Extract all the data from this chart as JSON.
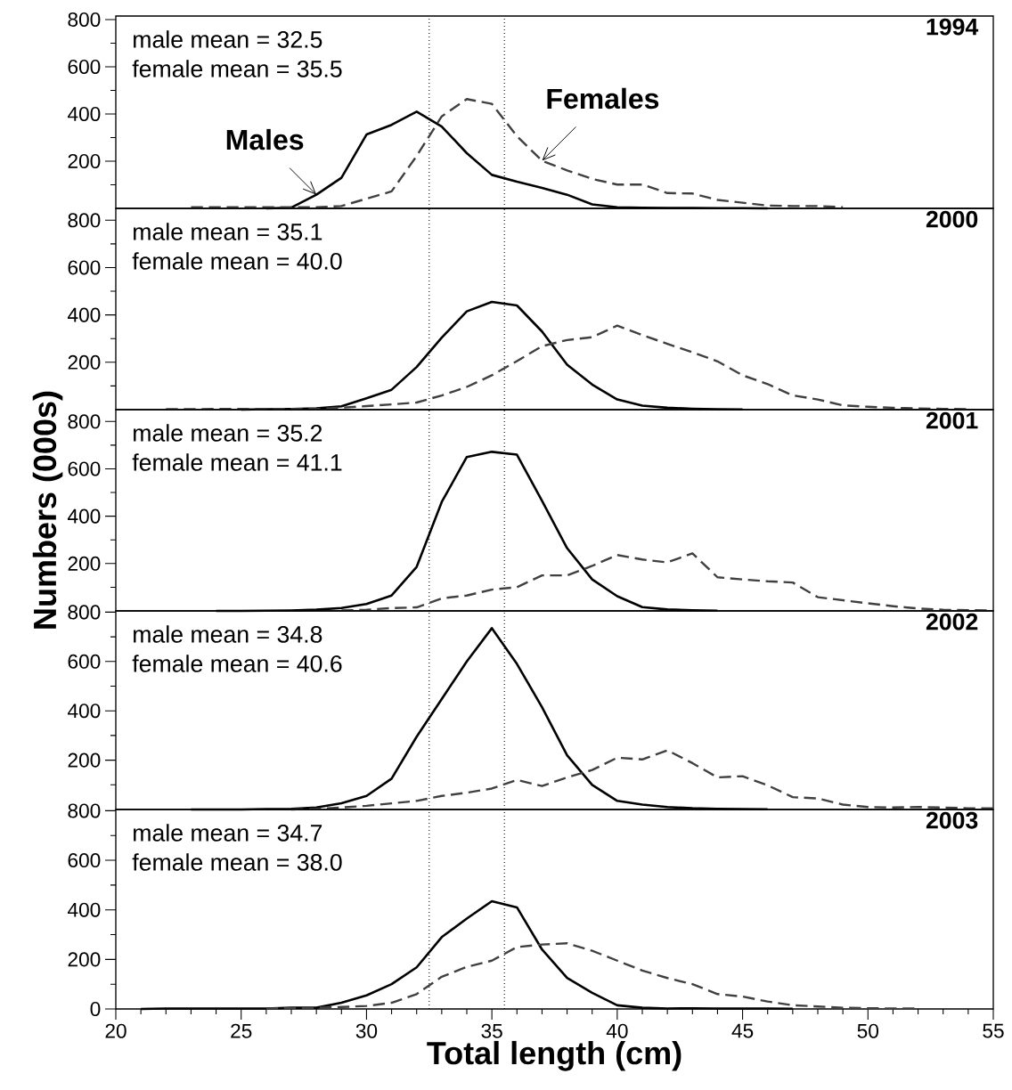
{
  "chart_data": [
    {
      "type": "line",
      "title": "1994",
      "annotations": [
        "male mean = 32.5",
        "female mean = 35.5"
      ],
      "xlim": [
        20,
        55
      ],
      "ylim": [
        0,
        815
      ],
      "tick_labels": "y",
      "yticks": [
        200,
        400,
        600,
        800,
        {
          "value": 100,
          "label": null
        },
        {
          "value": 300,
          "label": null
        },
        {
          "value": 500,
          "label": null
        },
        {
          "value": 700,
          "label": null
        }
      ],
      "ref_lines": [
        {
          "axis": "x",
          "value": 32.5,
          "color": "#000000",
          "line_style": "dotted"
        },
        {
          "axis": "x",
          "value": 35.5,
          "color": "#000000",
          "line_style": "dotted"
        }
      ],
      "series": [
        {
          "name": "Males",
          "color": "#000000",
          "line_style": "solid",
          "x": [
            26,
            27,
            28,
            29,
            30,
            31,
            32,
            33,
            34,
            35,
            36,
            37,
            38,
            39,
            40,
            41,
            42,
            43,
            44,
            45,
            46
          ],
          "values": [
            0,
            3,
            58,
            130,
            313,
            354,
            410,
            347,
            234,
            142,
            113,
            87,
            58,
            17,
            5,
            3,
            2,
            2,
            1,
            1,
            0
          ]
        },
        {
          "name": "Females",
          "color": "#404040",
          "line_style": "dashed",
          "x": [
            23,
            24,
            25,
            26,
            27,
            28,
            29,
            30,
            31,
            32,
            33,
            34,
            35,
            36,
            37,
            38,
            39,
            40,
            41,
            42,
            43,
            44,
            45,
            46,
            47,
            48,
            49
          ],
          "values": [
            5,
            5,
            5,
            5,
            5,
            5,
            10,
            41,
            72,
            222,
            390,
            463,
            443,
            306,
            202,
            161,
            125,
            101,
            101,
            65,
            63,
            36,
            24,
            12,
            10,
            10,
            5
          ]
        }
      ]
    },
    {
      "type": "line",
      "title": "2000",
      "annotations": [
        "male mean = 35.1",
        "female mean = 40.0"
      ],
      "xlim": [
        20,
        55
      ],
      "ylim": [
        0,
        850
      ],
      "tick_labels": "y",
      "yticks": [
        200,
        400,
        600,
        800,
        {
          "value": 100,
          "label": null
        },
        {
          "value": 300,
          "label": null
        },
        {
          "value": 500,
          "label": null
        },
        {
          "value": 700,
          "label": null
        }
      ],
      "ref_lines": [
        {
          "axis": "x",
          "value": 32.5,
          "color": "#000000",
          "line_style": "dotted"
        },
        {
          "axis": "x",
          "value": 35.5,
          "color": "#000000",
          "line_style": "dotted"
        }
      ],
      "series": [
        {
          "color": "#000000",
          "line_style": "solid",
          "x": [
            25,
            26,
            27,
            28,
            29,
            30,
            31,
            32,
            33,
            34,
            35,
            36,
            37,
            38,
            39,
            40,
            41,
            42,
            43,
            44,
            45
          ],
          "values": [
            0,
            2,
            3,
            5,
            14,
            48,
            84,
            180,
            304,
            415,
            455,
            440,
            330,
            190,
            106,
            43,
            17,
            8,
            4,
            2,
            1
          ]
        },
        {
          "color": "#404040",
          "line_style": "dashed",
          "x": [
            22,
            23,
            24,
            25,
            26,
            27,
            28,
            29,
            30,
            31,
            32,
            33,
            34,
            35,
            36,
            37,
            38,
            39,
            40,
            41,
            42,
            43,
            44,
            45,
            46,
            47,
            48,
            49,
            50,
            51,
            52,
            53,
            54
          ],
          "values": [
            2,
            2,
            3,
            3,
            3,
            3,
            3,
            8,
            15,
            22,
            30,
            60,
            96,
            145,
            205,
            268,
            294,
            306,
            355,
            315,
            278,
            242,
            204,
            145,
            108,
            60,
            43,
            18,
            12,
            8,
            5,
            3,
            2
          ]
        }
      ]
    },
    {
      "type": "line",
      "title": "2001",
      "ylabel": "Numbers (000s)",
      "annotations": [
        "male mean = 35.2",
        "female mean = 41.1"
      ],
      "xlim": [
        20,
        55
      ],
      "ylim": [
        0,
        850
      ],
      "tick_labels": "y",
      "yticks": [
        200,
        400,
        600,
        800,
        {
          "value": 100,
          "label": null
        },
        {
          "value": 300,
          "label": null
        },
        {
          "value": 500,
          "label": null
        },
        {
          "value": 700,
          "label": null
        }
      ],
      "ref_lines": [
        {
          "axis": "x",
          "value": 32.5,
          "color": "#000000",
          "line_style": "dotted"
        },
        {
          "axis": "x",
          "value": 35.5,
          "color": "#000000",
          "line_style": "dotted"
        }
      ],
      "series": [
        {
          "color": "#000000",
          "line_style": "solid",
          "x": [
            24,
            25,
            26,
            27,
            28,
            29,
            30,
            31,
            32,
            33,
            34,
            35,
            36,
            37,
            38,
            39,
            40,
            41,
            42,
            43,
            44
          ],
          "values": [
            0,
            0,
            1,
            2,
            5,
            12,
            29,
            65,
            186,
            460,
            650,
            672,
            660,
            465,
            265,
            133,
            62,
            16,
            6,
            3,
            1
          ]
        },
        {
          "color": "#404040",
          "line_style": "dashed",
          "x": [
            29,
            30,
            31,
            32,
            33,
            34,
            35,
            36,
            37,
            38,
            39,
            40,
            41,
            42,
            43,
            44,
            45,
            46,
            47,
            48,
            49,
            50,
            51,
            52,
            53,
            54,
            55
          ],
          "values": [
            2,
            5,
            12,
            15,
            53,
            65,
            90,
            100,
            150,
            150,
            190,
            236,
            217,
            205,
            243,
            142,
            133,
            125,
            120,
            58,
            45,
            32,
            20,
            10,
            5,
            3,
            2
          ]
        }
      ]
    },
    {
      "type": "line",
      "title": "2002",
      "annotations": [
        "male mean = 34.8",
        "female mean = 40.6"
      ],
      "xlim": [
        20,
        55
      ],
      "ylim": [
        0,
        805
      ],
      "tick_labels": "y",
      "yticks": [
        200,
        400,
        600,
        800,
        {
          "value": 100,
          "label": null
        },
        {
          "value": 300,
          "label": null
        },
        {
          "value": 500,
          "label": null
        },
        {
          "value": 700,
          "label": null
        }
      ],
      "ref_lines": [
        {
          "axis": "x",
          "value": 32.5,
          "color": "#000000",
          "line_style": "dotted"
        },
        {
          "axis": "x",
          "value": 35.5,
          "color": "#000000",
          "line_style": "dotted"
        }
      ],
      "series": [
        {
          "color": "#000000",
          "line_style": "solid",
          "x": [
            23,
            24,
            25,
            26,
            27,
            28,
            29,
            30,
            31,
            32,
            33,
            34,
            35,
            36,
            37,
            38,
            39,
            40,
            41,
            42,
            43,
            44,
            45,
            46
          ],
          "values": [
            0,
            0,
            0,
            2,
            3,
            8,
            25,
            55,
            125,
            295,
            448,
            600,
            735,
            590,
            415,
            220,
            100,
            35,
            20,
            10,
            5,
            3,
            2,
            1
          ]
        },
        {
          "color": "#404040",
          "line_style": "dashed",
          "x": [
            27,
            28,
            29,
            30,
            31,
            32,
            33,
            34,
            35,
            36,
            37,
            38,
            39,
            40,
            41,
            42,
            43,
            44,
            45,
            46,
            47,
            48,
            49,
            50,
            51,
            52,
            53,
            54,
            55
          ],
          "values": [
            0,
            3,
            8,
            15,
            25,
            35,
            55,
            68,
            85,
            120,
            95,
            130,
            160,
            210,
            203,
            240,
            188,
            130,
            135,
            98,
            50,
            45,
            20,
            10,
            8,
            10,
            8,
            5,
            5
          ]
        }
      ]
    },
    {
      "type": "line",
      "title": "2003",
      "xlabel": "Total length (cm)",
      "annotations": [
        "male mean = 34.7",
        "female mean = 38.0"
      ],
      "xlim": [
        20,
        55
      ],
      "ylim": [
        0,
        805
      ],
      "xticks": [
        20,
        25,
        30,
        35,
        40,
        45,
        50,
        55,
        {
          "value": 21,
          "label": null
        },
        {
          "value": 22,
          "label": null
        },
        {
          "value": 23,
          "label": null
        },
        {
          "value": 24,
          "label": null
        },
        {
          "value": 26,
          "label": null
        },
        {
          "value": 27,
          "label": null
        },
        {
          "value": 28,
          "label": null
        },
        {
          "value": 29,
          "label": null
        },
        {
          "value": 31,
          "label": null
        },
        {
          "value": 32,
          "label": null
        },
        {
          "value": 33,
          "label": null
        },
        {
          "value": 34,
          "label": null
        },
        {
          "value": 36,
          "label": null
        },
        {
          "value": 37,
          "label": null
        },
        {
          "value": 38,
          "label": null
        },
        {
          "value": 39,
          "label": null
        },
        {
          "value": 41,
          "label": null
        },
        {
          "value": 42,
          "label": null
        },
        {
          "value": 43,
          "label": null
        },
        {
          "value": 44,
          "label": null
        },
        {
          "value": 46,
          "label": null
        },
        {
          "value": 47,
          "label": null
        },
        {
          "value": 48,
          "label": null
        },
        {
          "value": 49,
          "label": null
        },
        {
          "value": 51,
          "label": null
        },
        {
          "value": 52,
          "label": null
        },
        {
          "value": 53,
          "label": null
        },
        {
          "value": 54,
          "label": null
        }
      ],
      "yticks": [
        0,
        200,
        400,
        600,
        800,
        {
          "value": 100,
          "label": null
        },
        {
          "value": 300,
          "label": null
        },
        {
          "value": 500,
          "label": null
        },
        {
          "value": 700,
          "label": null
        }
      ],
      "ref_lines": [
        {
          "axis": "x",
          "value": 32.5,
          "color": "#000000",
          "line_style": "dotted"
        },
        {
          "axis": "x",
          "value": 35.5,
          "color": "#000000",
          "line_style": "dotted"
        }
      ],
      "series": [
        {
          "color": "#000000",
          "line_style": "solid",
          "x": [
            21,
            22,
            23,
            24,
            25,
            26,
            27,
            28,
            29,
            30,
            31,
            32,
            33,
            34,
            35,
            36,
            37,
            38,
            39,
            40,
            41,
            42,
            43,
            44,
            45,
            46,
            47
          ],
          "values": [
            0,
            2,
            2,
            2,
            2,
            2,
            5,
            5,
            25,
            55,
            100,
            168,
            290,
            365,
            435,
            410,
            240,
            125,
            65,
            15,
            5,
            2,
            3,
            2,
            2,
            2,
            1
          ]
        },
        {
          "color": "#404040",
          "line_style": "dashed",
          "x": [
            26,
            27,
            28,
            29,
            30,
            31,
            32,
            33,
            34,
            35,
            36,
            37,
            38,
            39,
            40,
            41,
            42,
            43,
            44,
            45,
            46,
            47,
            48,
            49,
            50,
            51,
            52
          ],
          "values": [
            2,
            3,
            5,
            8,
            12,
            25,
            60,
            130,
            170,
            195,
            250,
            260,
            265,
            235,
            195,
            155,
            125,
            100,
            60,
            50,
            30,
            15,
            10,
            5,
            3,
            2,
            2
          ]
        }
      ]
    }
  ]
}
